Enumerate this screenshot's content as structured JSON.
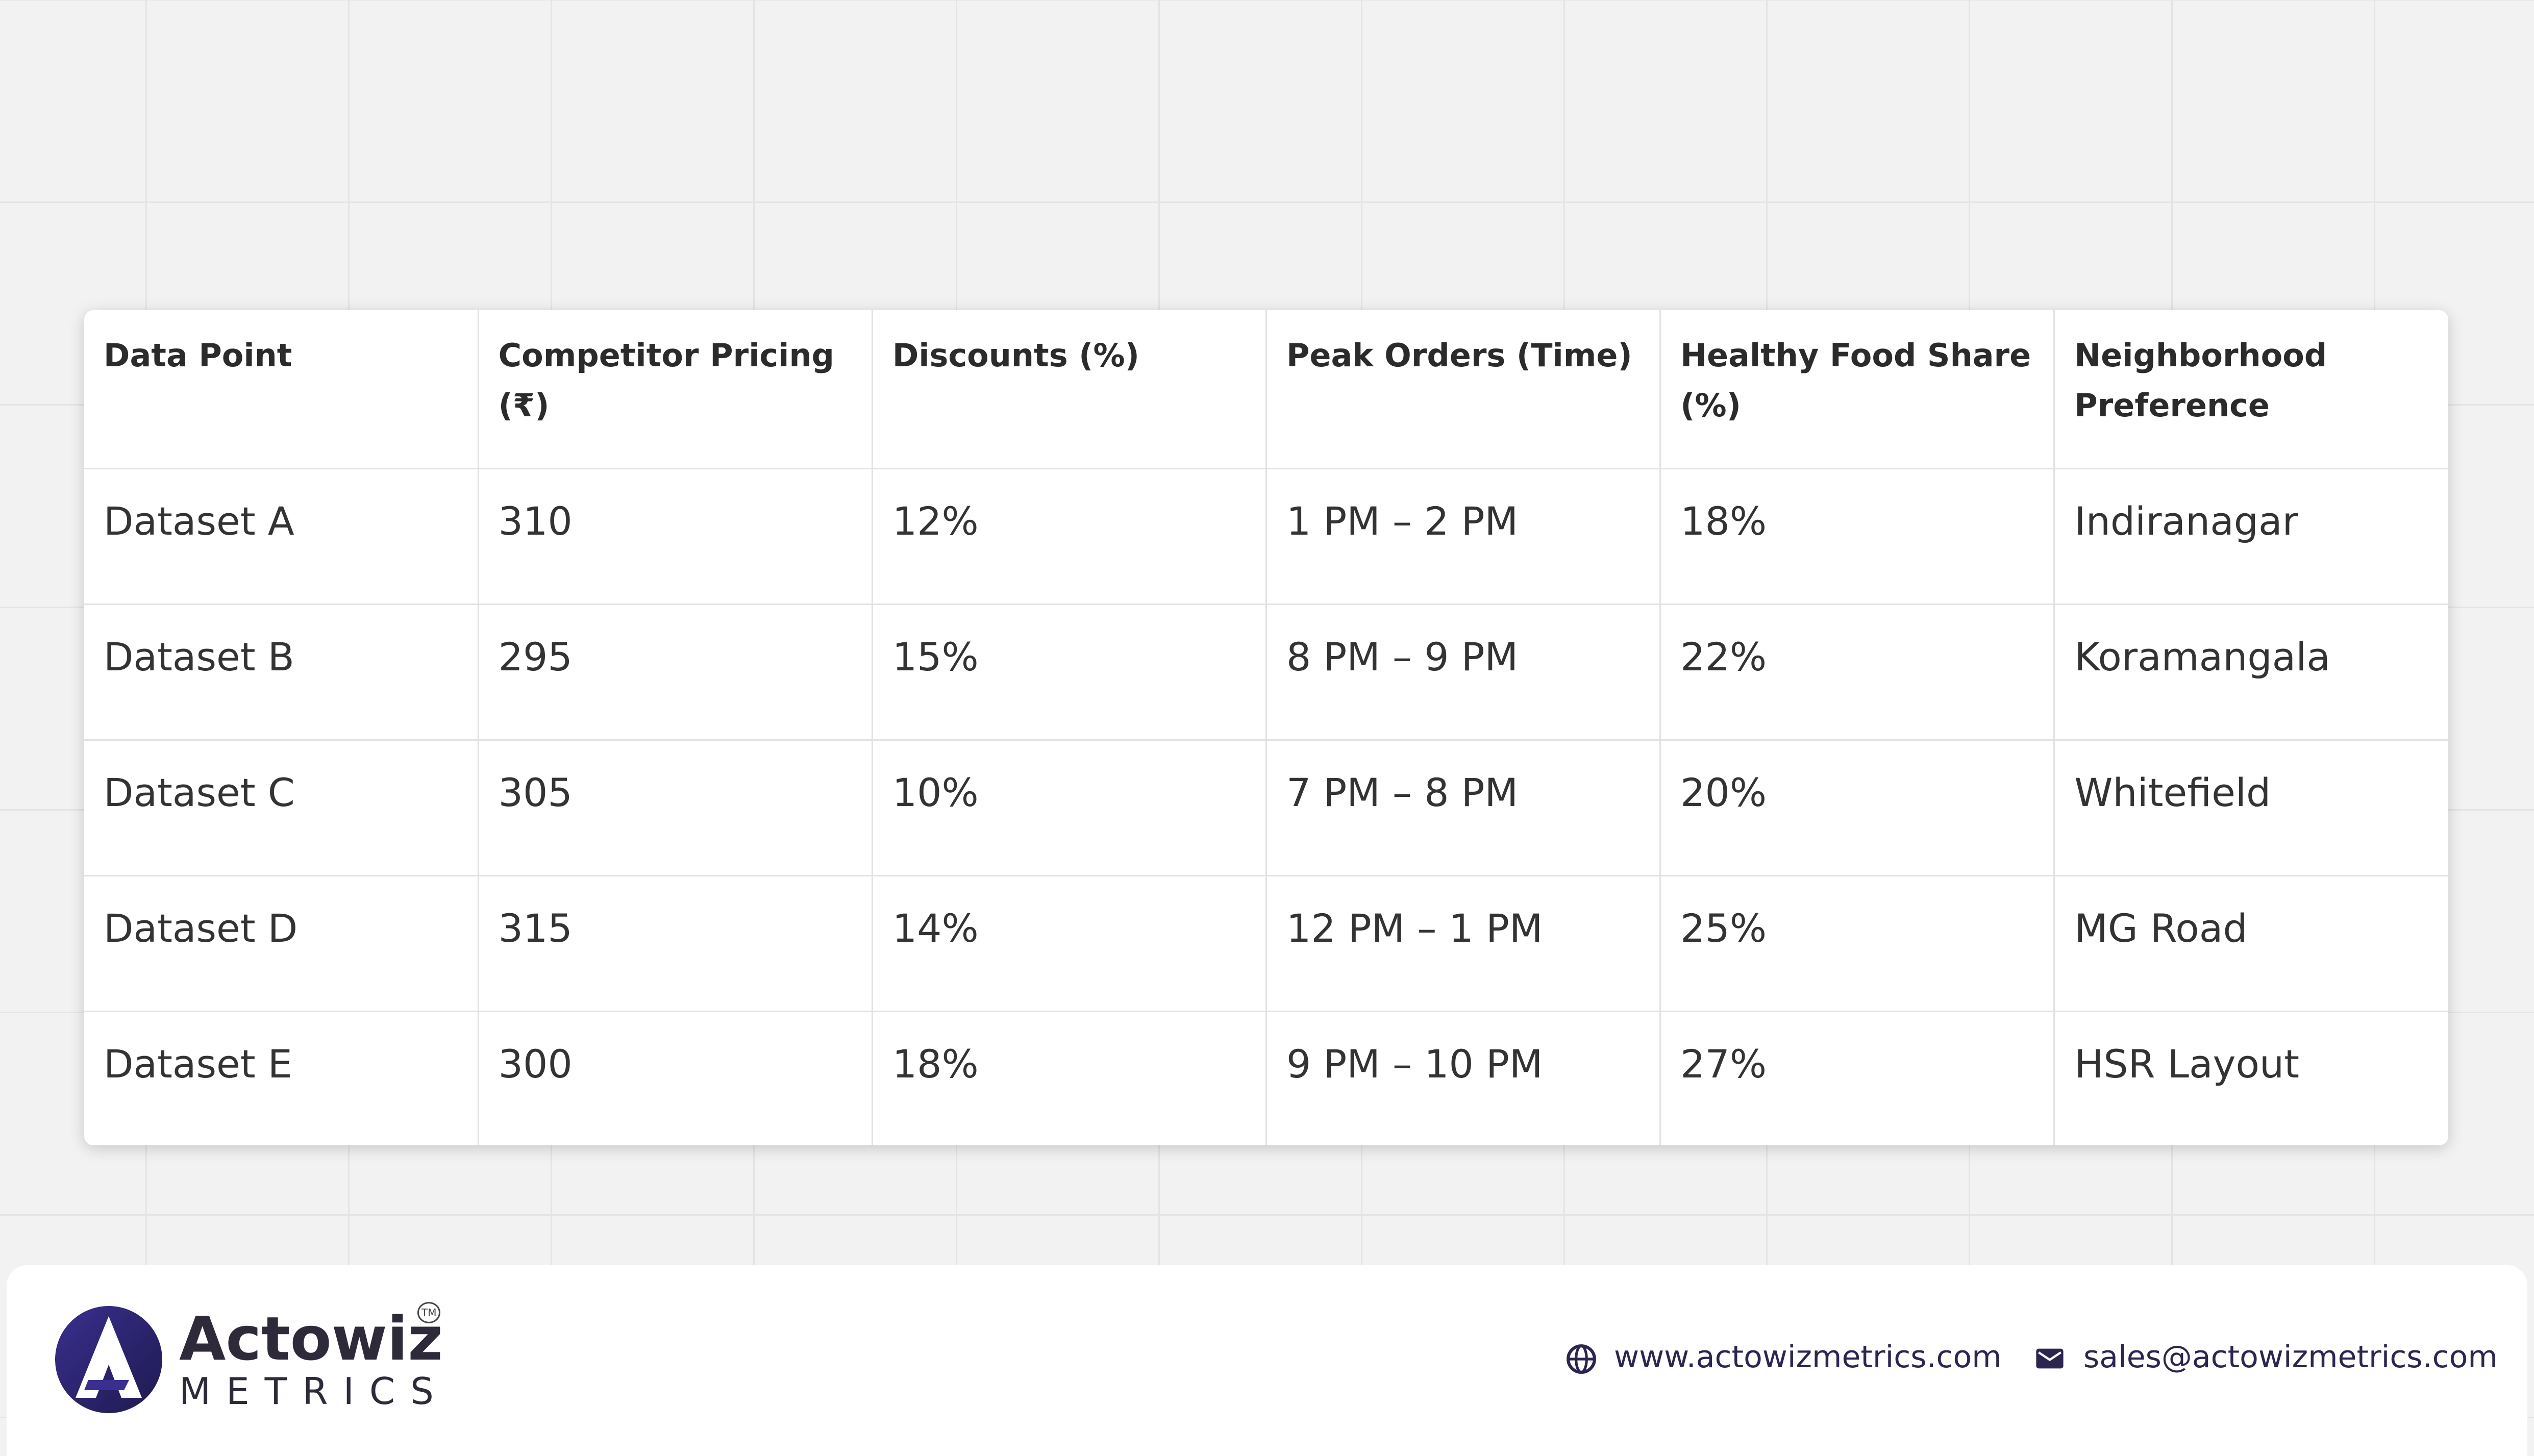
{
  "table": {
    "header": [
      "Data Point",
      "Competitor Pricing (₹)",
      "Discounts (%)",
      "Peak Orders (Time)",
      "Healthy Food Share (%)",
      "Neighborhood Preference"
    ],
    "rows": [
      [
        "Dataset A",
        "310",
        "12%",
        "1 PM – 2 PM",
        "18%",
        "Indiranagar"
      ],
      [
        "Dataset B",
        "295",
        "15%",
        "8 PM – 9 PM",
        "22%",
        "Koramangala"
      ],
      [
        "Dataset C",
        "305",
        "10%",
        "7 PM – 8 PM",
        "20%",
        "Whitefield"
      ],
      [
        "Dataset D",
        "315",
        "14%",
        "12 PM – 1 PM",
        "25%",
        "MG Road"
      ],
      [
        "Dataset E",
        "300",
        "18%",
        "9 PM – 10 PM",
        "27%",
        "HSR Layout"
      ]
    ]
  },
  "footer": {
    "brand": "Actowiz",
    "brand_sub": "METRICS",
    "trademark": "TM",
    "website": "www.actowizmetrics.com",
    "email": "sales@actowizmetrics.com"
  }
}
